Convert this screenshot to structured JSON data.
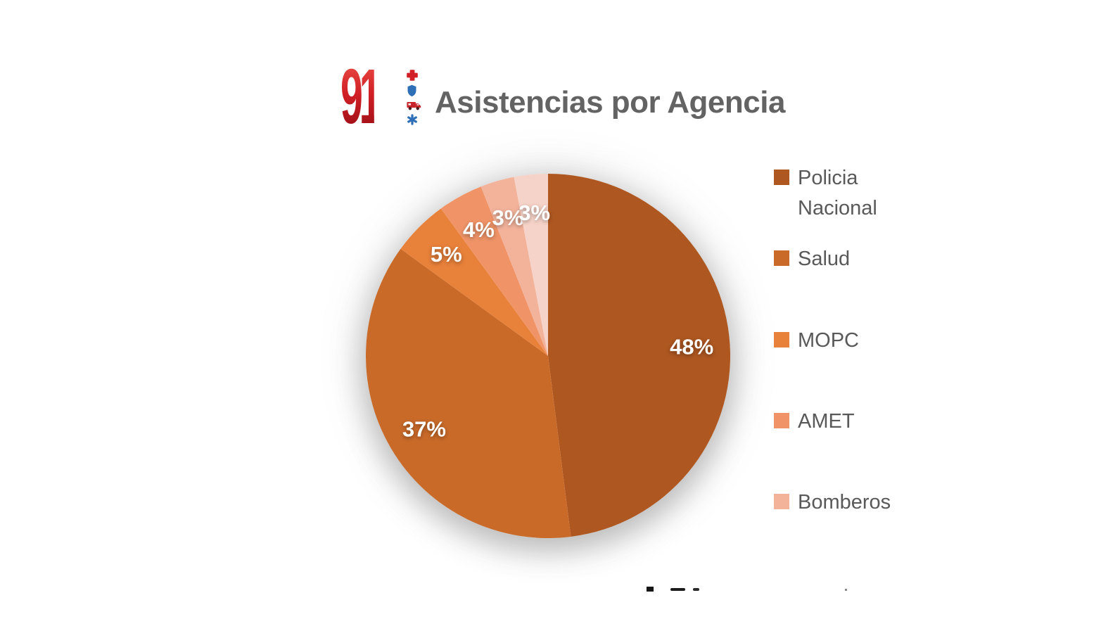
{
  "header": {
    "logo_text": "911",
    "logo_icon_names": [
      "medic-cross-icon",
      "police-shield-icon",
      "ambulance-icon",
      "star-of-life-icon"
    ],
    "title": "Asistencias por Agencia"
  },
  "chart_data": {
    "type": "pie",
    "title": "Asistencias por Agencia",
    "unit": "percent",
    "start_angle_deg": 0,
    "direction": "clockwise",
    "legend_position": "right",
    "data_labels": "inside, white bold percentages",
    "slices": [
      {
        "label": "Policia Nacional",
        "value_pct": 48,
        "data_label": "48%",
        "color": "#AE5721",
        "in_legend": true
      },
      {
        "label": "Salud",
        "value_pct": 37,
        "data_label": "37%",
        "color": "#C96A29",
        "in_legend": true
      },
      {
        "label": "MOPC",
        "value_pct": 5,
        "data_label": "5%",
        "color": "#E8813A",
        "in_legend": true
      },
      {
        "label": "AMET",
        "value_pct": 4,
        "data_label": "4%",
        "color": "#F09468",
        "in_legend": true
      },
      {
        "label": "Bomberos",
        "value_pct": 3,
        "data_label": "3%",
        "color": "#F3B39B",
        "in_legend": true
      },
      {
        "label": "",
        "value_pct": 3,
        "data_label": "3%",
        "color": "#F6D3C8",
        "in_legend": false
      }
    ],
    "colors": {
      "data_label_text": "#FFFFFF",
      "legend_text": "#595959",
      "title_text": "#636363",
      "logo_red": "#D01F25",
      "logo_icon_blue": "#2E6FB7"
    }
  }
}
